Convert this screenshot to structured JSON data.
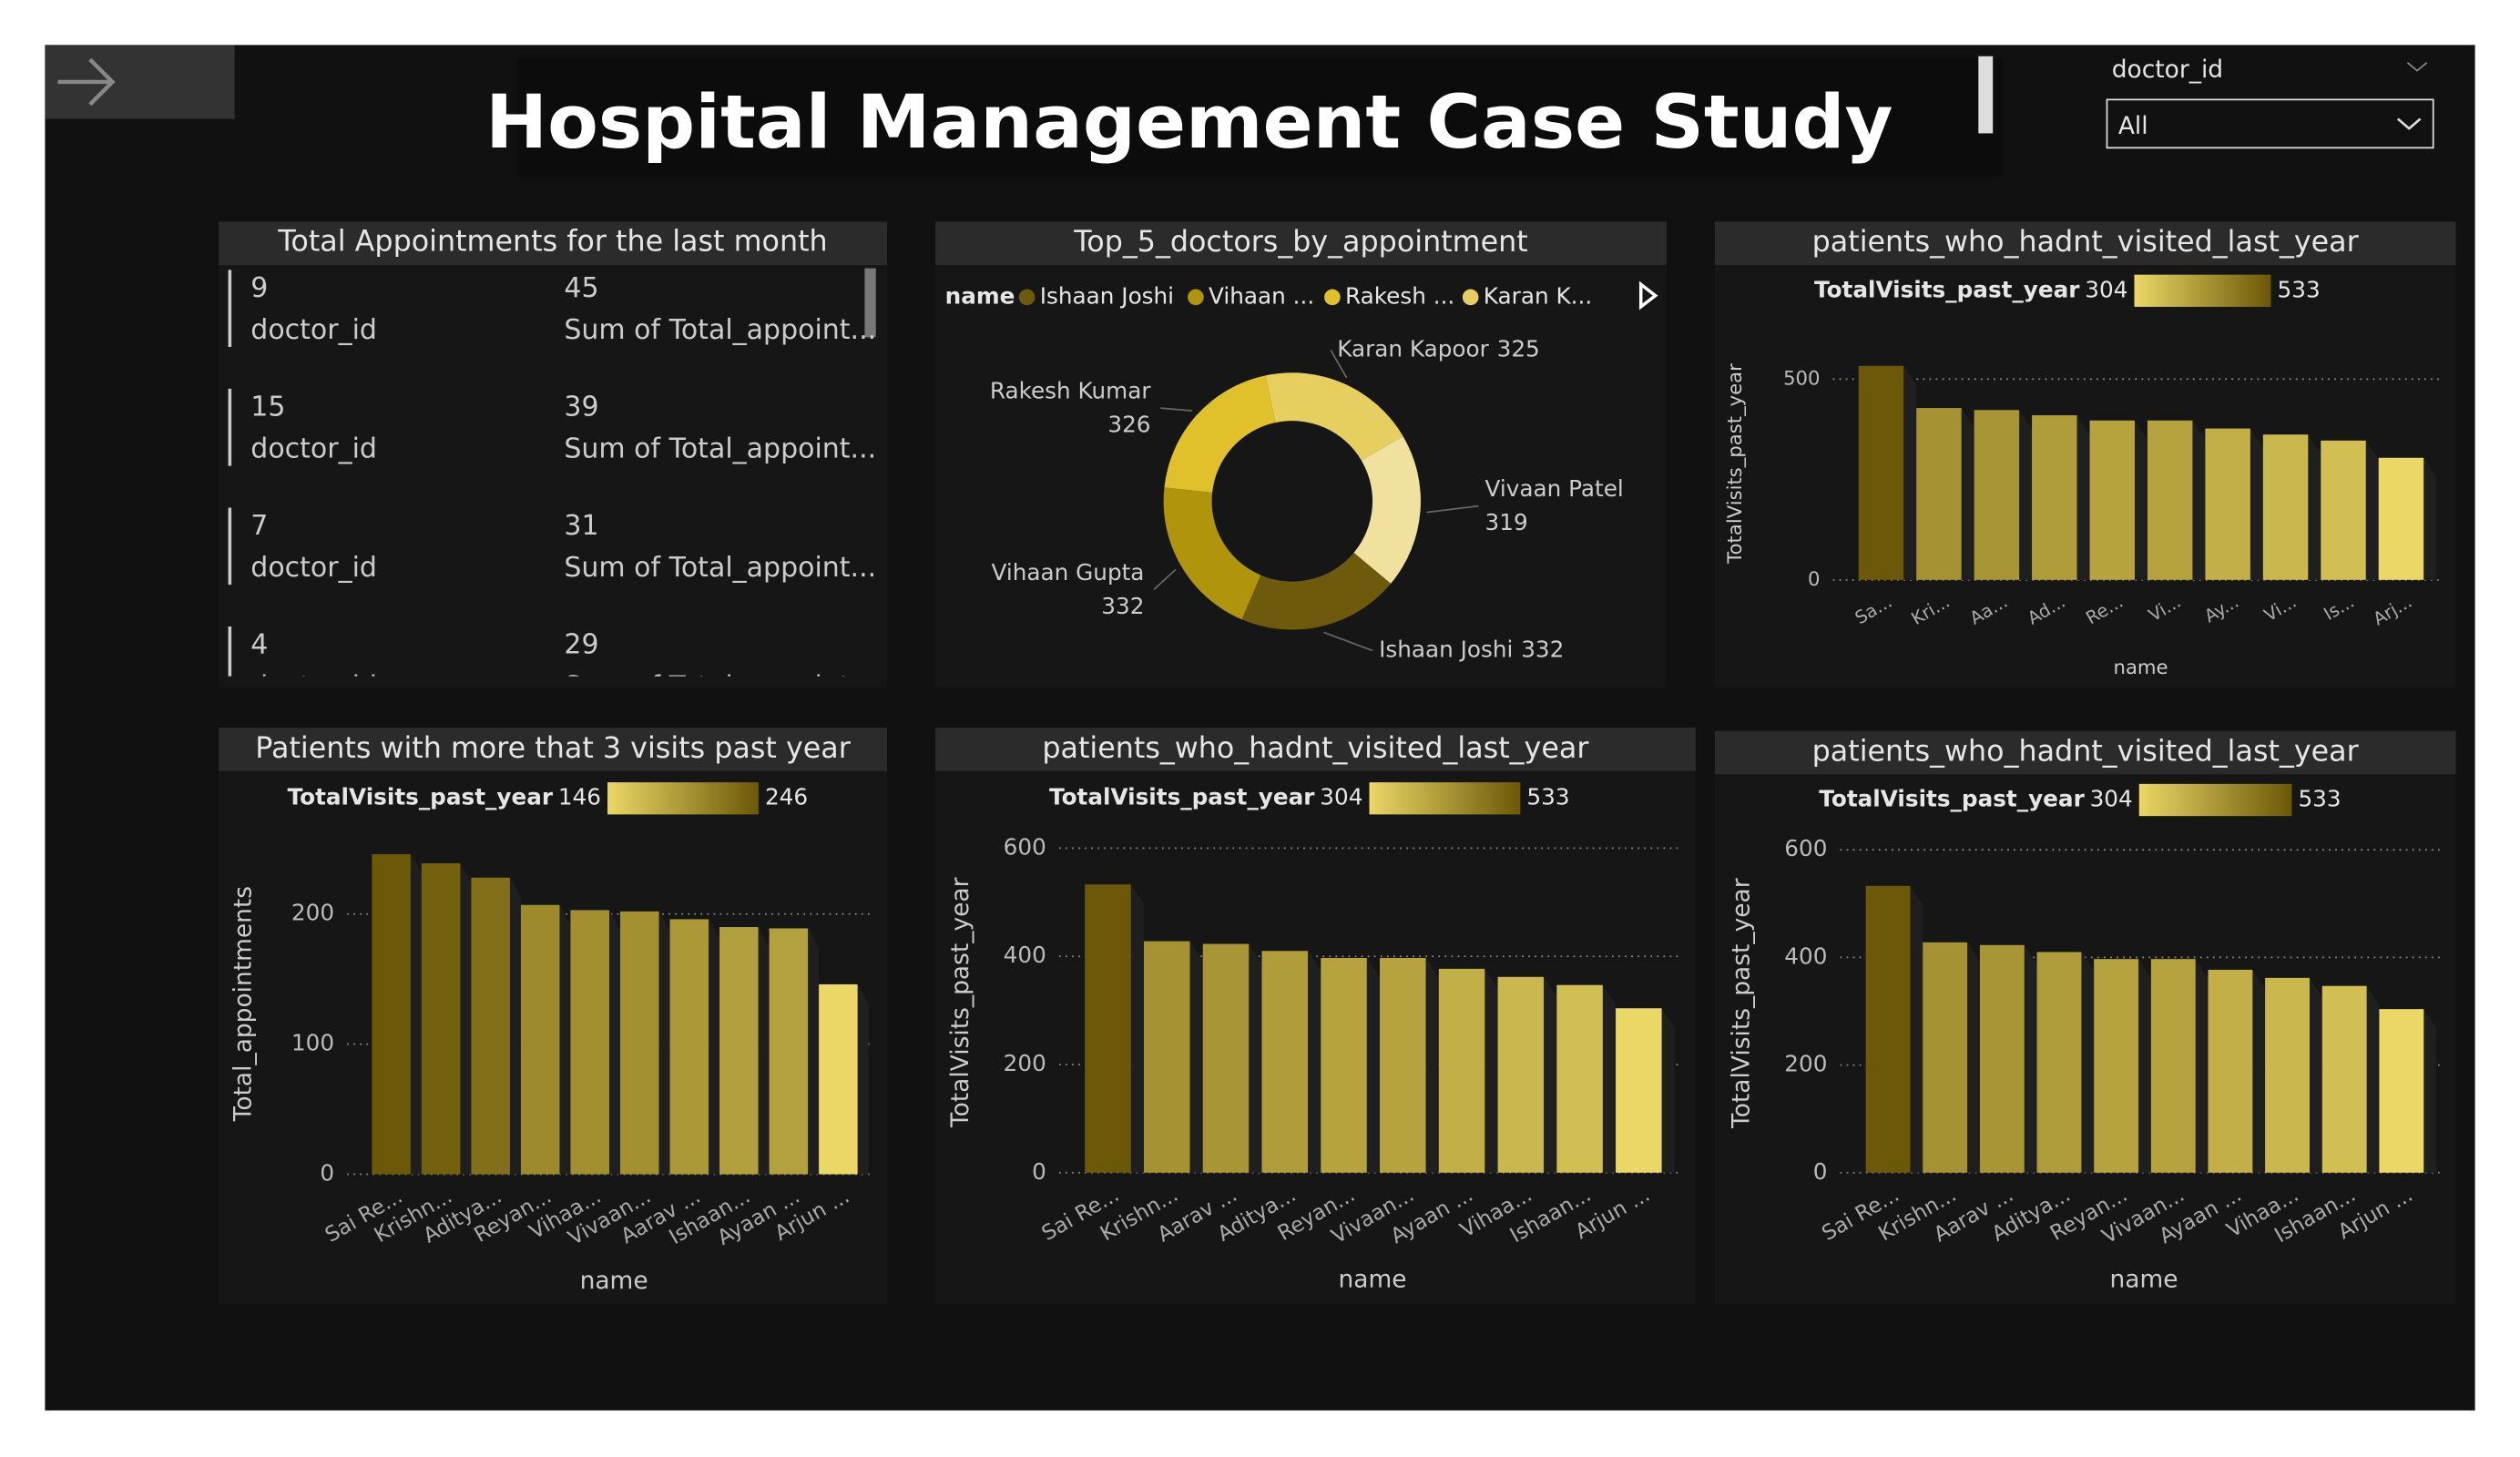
{
  "header": {
    "title": "Hospital Management Case Study"
  },
  "slicer": {
    "label": "doctor_id",
    "value": "All"
  },
  "cards": {
    "title": "Total Appointments for the last month",
    "field_labels": [
      "doctor_id",
      "Sum of Total_appoint..."
    ],
    "rows": [
      [
        9,
        45
      ],
      [
        15,
        39
      ],
      [
        7,
        31
      ],
      [
        4,
        29
      ]
    ]
  },
  "chart_data": [
    {
      "type": "donut",
      "title": "Top_5_doctors_by_appointment",
      "legend_title": "name",
      "legend": [
        {
          "label": "Ishaan Joshi",
          "color": "#6e5a0c"
        },
        {
          "label": "Vihaan ...",
          "color": "#b0950c"
        },
        {
          "label": "Rakesh ...",
          "color": "#e0c12c"
        },
        {
          "label": "Karan K...",
          "color": "#e6cf5e"
        }
      ],
      "categories": [
        "Karan Kapoor",
        "Vivaan Patel",
        "Ishaan Joshi",
        "Vihaan Gupta",
        "Rakesh Kumar"
      ],
      "values": [
        325,
        319,
        332,
        332,
        326
      ],
      "colors": [
        "#e6cf5e",
        "#f1e19e",
        "#6e5a0c",
        "#b0950c",
        "#e0c12c"
      ]
    },
    {
      "type": "bar",
      "title": "patients_who_hadnt_visited_last_year",
      "legend_title": "TotalVisits_past_year",
      "color_range": [
        304,
        533
      ],
      "color_scale": [
        "#ead766",
        "#6b5808"
      ],
      "y_label": "TotalVisits_past_year",
      "x_label": "name",
      "categories": [
        "Sa...",
        "Kri...",
        "Aa...",
        "Ad...",
        "Re...",
        "Vi...",
        "Ay...",
        "Vi...",
        "Is...",
        "Arj..."
      ],
      "values": [
        533,
        428,
        423,
        410,
        397,
        397,
        377,
        362,
        347,
        304
      ],
      "ylim": [
        0,
        540
      ],
      "yticks": [
        0,
        500
      ]
    },
    {
      "type": "bar",
      "title": "Patients with more that 3 visits past year",
      "legend_title": "TotalVisits_past_year",
      "color_range": [
        146,
        246
      ],
      "color_scale": [
        "#ead766",
        "#6b5808"
      ],
      "y_label": "Total_appointments",
      "x_label": "name",
      "categories": [
        "Sai Re...",
        "Krishn...",
        "Aditya...",
        "Reyan...",
        "Vihaa...",
        "Vivaan...",
        "Aarav ...",
        "Ishaan...",
        "Ayaan ...",
        "Arjun ..."
      ],
      "values": [
        246,
        239,
        228,
        207,
        203,
        202,
        196,
        190,
        189,
        146
      ],
      "ylim": [
        0,
        250
      ],
      "yticks": [
        0,
        100,
        200
      ]
    },
    {
      "type": "bar",
      "title": "patients_who_hadnt_visited_last_year",
      "legend_title": "TotalVisits_past_year",
      "color_range": [
        304,
        533
      ],
      "color_scale": [
        "#ead766",
        "#6b5808"
      ],
      "y_label": "TotalVisits_past_year",
      "x_label": "name",
      "categories": [
        "Sai Re...",
        "Krishn...",
        "Aarav ...",
        "Aditya...",
        "Reyan...",
        "Vivaan...",
        "Ayaan ...",
        "Vihaa...",
        "Ishaan...",
        "Arjun ..."
      ],
      "values": [
        533,
        428,
        423,
        410,
        397,
        397,
        377,
        362,
        347,
        304
      ],
      "ylim": [
        0,
        600
      ],
      "yticks": [
        0,
        200,
        400,
        600
      ]
    },
    {
      "type": "bar",
      "title": "patients_who_hadnt_visited_last_year",
      "legend_title": "TotalVisits_past_year",
      "color_range": [
        304,
        533
      ],
      "color_scale": [
        "#ead766",
        "#6b5808"
      ],
      "y_label": "TotalVisits_past_year",
      "x_label": "name",
      "categories": [
        "Sai Re...",
        "Krishn...",
        "Aarav ...",
        "Aditya...",
        "Reyan...",
        "Vivaan...",
        "Ayaan ...",
        "Vihaa...",
        "Ishaan...",
        "Arjun ..."
      ],
      "values": [
        533,
        428,
        423,
        410,
        397,
        397,
        377,
        362,
        347,
        304
      ],
      "ylim": [
        0,
        600
      ],
      "yticks": [
        0,
        200,
        400,
        600
      ]
    }
  ]
}
